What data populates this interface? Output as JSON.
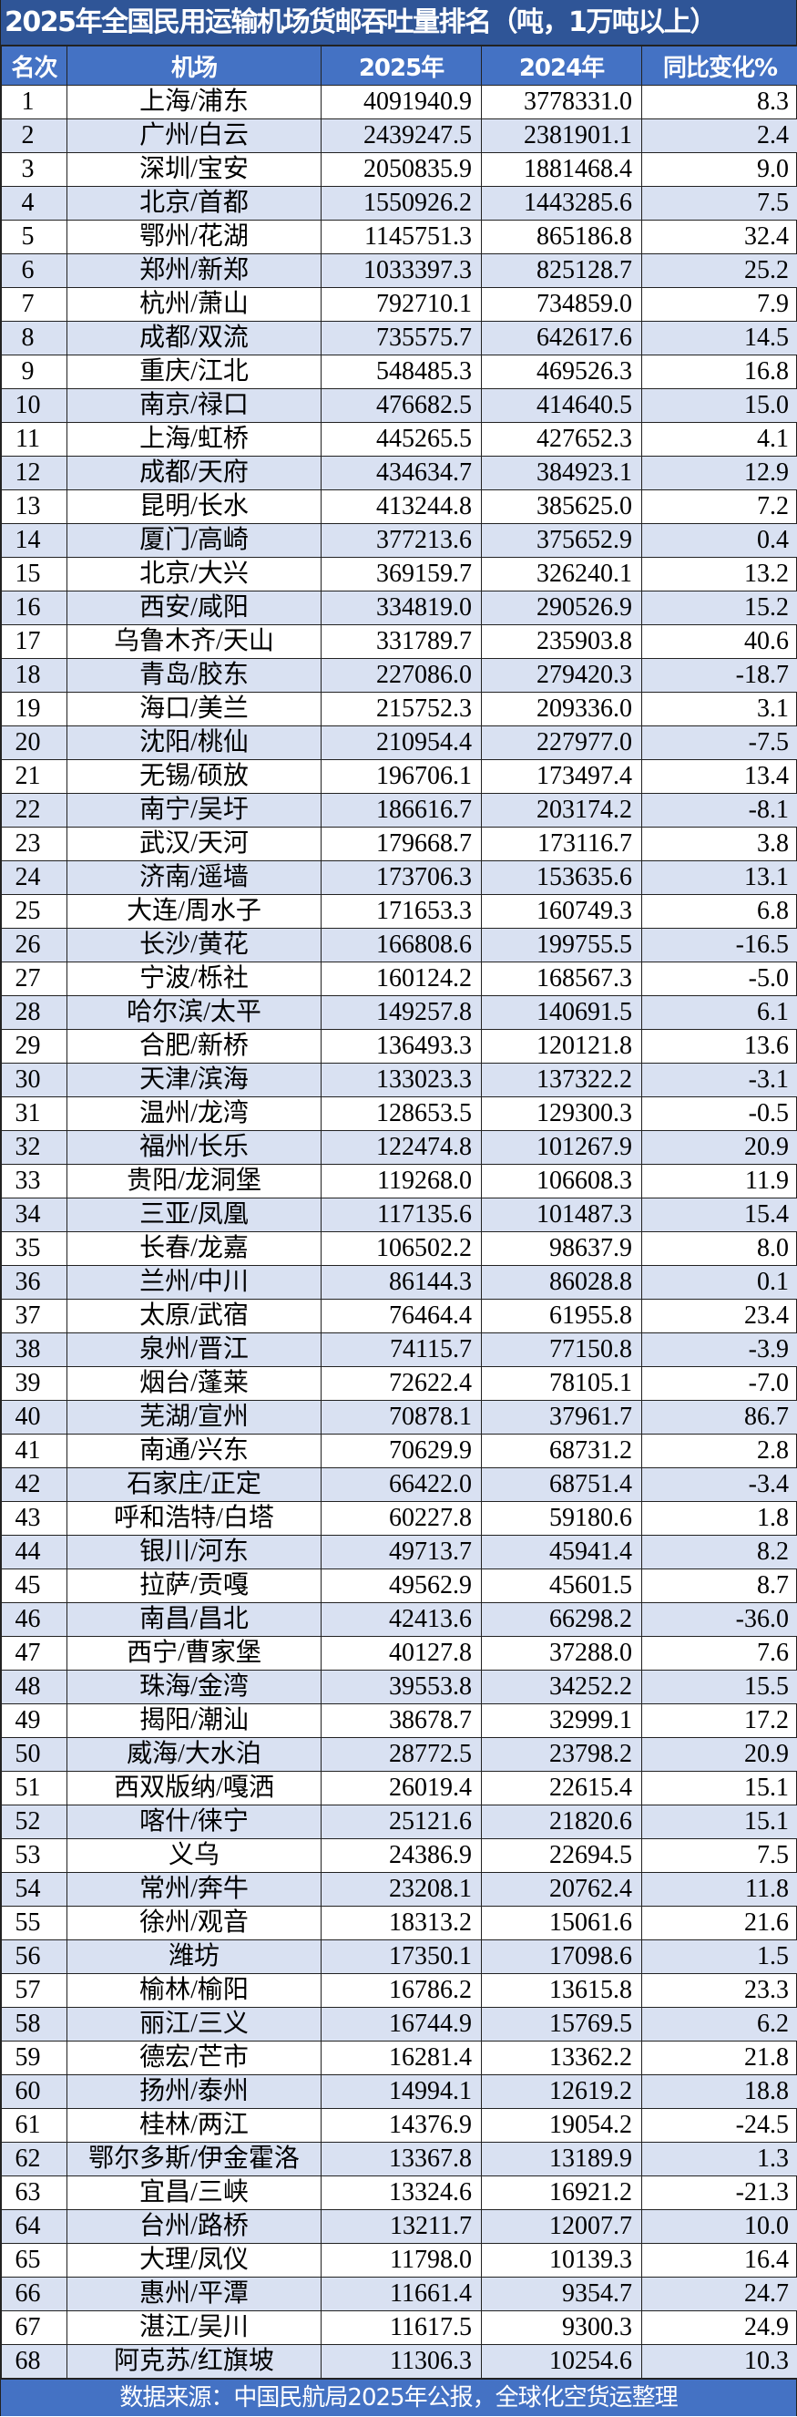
{
  "title": "2025年全国民用运输机场货邮吞吐量排名（吨，1万吨以上）",
  "headers": [
    "名次",
    "机场",
    "2025年",
    "2024年",
    "同比变化%"
  ],
  "colors": {
    "title_bg": "#2f5597",
    "header_bg": "#4472c4",
    "alt_row": "#d9e1f2"
  },
  "rows": [
    [
      "1",
      "上海/浦东",
      "4091940.9",
      "3778331.0",
      "8.3"
    ],
    [
      "2",
      "广州/白云",
      "2439247.5",
      "2381901.1",
      "2.4"
    ],
    [
      "3",
      "深圳/宝安",
      "2050835.9",
      "1881468.4",
      "9.0"
    ],
    [
      "4",
      "北京/首都",
      "1550926.2",
      "1443285.6",
      "7.5"
    ],
    [
      "5",
      "鄂州/花湖",
      "1145751.3",
      "865186.8",
      "32.4"
    ],
    [
      "6",
      "郑州/新郑",
      "1033397.3",
      "825128.7",
      "25.2"
    ],
    [
      "7",
      "杭州/萧山",
      "792710.1",
      "734859.0",
      "7.9"
    ],
    [
      "8",
      "成都/双流",
      "735575.7",
      "642617.6",
      "14.5"
    ],
    [
      "9",
      "重庆/江北",
      "548485.3",
      "469526.3",
      "16.8"
    ],
    [
      "10",
      "南京/禄口",
      "476682.5",
      "414640.5",
      "15.0"
    ],
    [
      "11",
      "上海/虹桥",
      "445265.5",
      "427652.3",
      "4.1"
    ],
    [
      "12",
      "成都/天府",
      "434634.7",
      "384923.1",
      "12.9"
    ],
    [
      "13",
      "昆明/长水",
      "413244.8",
      "385625.0",
      "7.2"
    ],
    [
      "14",
      "厦门/高崎",
      "377213.6",
      "375652.9",
      "0.4"
    ],
    [
      "15",
      "北京/大兴",
      "369159.7",
      "326240.1",
      "13.2"
    ],
    [
      "16",
      "西安/咸阳",
      "334819.0",
      "290526.9",
      "15.2"
    ],
    [
      "17",
      "乌鲁木齐/天山",
      "331789.7",
      "235903.8",
      "40.6"
    ],
    [
      "18",
      "青岛/胶东",
      "227086.0",
      "279420.3",
      "-18.7"
    ],
    [
      "19",
      "海口/美兰",
      "215752.3",
      "209336.0",
      "3.1"
    ],
    [
      "20",
      "沈阳/桃仙",
      "210954.4",
      "227977.0",
      "-7.5"
    ],
    [
      "21",
      "无锡/硕放",
      "196706.1",
      "173497.4",
      "13.4"
    ],
    [
      "22",
      "南宁/吴圩",
      "186616.7",
      "203174.2",
      "-8.1"
    ],
    [
      "23",
      "武汉/天河",
      "179668.7",
      "173116.7",
      "3.8"
    ],
    [
      "24",
      "济南/遥墙",
      "173706.3",
      "153635.6",
      "13.1"
    ],
    [
      "25",
      "大连/周水子",
      "171653.3",
      "160749.3",
      "6.8"
    ],
    [
      "26",
      "长沙/黄花",
      "166808.6",
      "199755.5",
      "-16.5"
    ],
    [
      "27",
      "宁波/栎社",
      "160124.2",
      "168567.3",
      "-5.0"
    ],
    [
      "28",
      "哈尔滨/太平",
      "149257.8",
      "140691.5",
      "6.1"
    ],
    [
      "29",
      "合肥/新桥",
      "136493.3",
      "120121.8",
      "13.6"
    ],
    [
      "30",
      "天津/滨海",
      "133023.3",
      "137322.2",
      "-3.1"
    ],
    [
      "31",
      "温州/龙湾",
      "128653.5",
      "129300.3",
      "-0.5"
    ],
    [
      "32",
      "福州/长乐",
      "122474.8",
      "101267.9",
      "20.9"
    ],
    [
      "33",
      "贵阳/龙洞堡",
      "119268.0",
      "106608.3",
      "11.9"
    ],
    [
      "34",
      "三亚/凤凰",
      "117135.6",
      "101487.3",
      "15.4"
    ],
    [
      "35",
      "长春/龙嘉",
      "106502.2",
      "98637.9",
      "8.0"
    ],
    [
      "36",
      "兰州/中川",
      "86144.3",
      "86028.8",
      "0.1"
    ],
    [
      "37",
      "太原/武宿",
      "76464.4",
      "61955.8",
      "23.4"
    ],
    [
      "38",
      "泉州/晋江",
      "74115.7",
      "77150.8",
      "-3.9"
    ],
    [
      "39",
      "烟台/蓬莱",
      "72622.4",
      "78105.1",
      "-7.0"
    ],
    [
      "40",
      "芜湖/宣州",
      "70878.1",
      "37961.7",
      "86.7"
    ],
    [
      "41",
      "南通/兴东",
      "70629.9",
      "68731.2",
      "2.8"
    ],
    [
      "42",
      "石家庄/正定",
      "66422.0",
      "68751.4",
      "-3.4"
    ],
    [
      "43",
      "呼和浩特/白塔",
      "60227.8",
      "59180.6",
      "1.8"
    ],
    [
      "44",
      "银川/河东",
      "49713.7",
      "45941.4",
      "8.2"
    ],
    [
      "45",
      "拉萨/贡嘎",
      "49562.9",
      "45601.5",
      "8.7"
    ],
    [
      "46",
      "南昌/昌北",
      "42413.6",
      "66298.2",
      "-36.0"
    ],
    [
      "47",
      "西宁/曹家堡",
      "40127.8",
      "37288.0",
      "7.6"
    ],
    [
      "48",
      "珠海/金湾",
      "39553.8",
      "34252.2",
      "15.5"
    ],
    [
      "49",
      "揭阳/潮汕",
      "38678.7",
      "32999.1",
      "17.2"
    ],
    [
      "50",
      "威海/大水泊",
      "28772.5",
      "23798.2",
      "20.9"
    ],
    [
      "51",
      "西双版纳/嘎洒",
      "26019.4",
      "22615.4",
      "15.1"
    ],
    [
      "52",
      "喀什/徕宁",
      "25121.6",
      "21820.6",
      "15.1"
    ],
    [
      "53",
      "义乌",
      "24386.9",
      "22694.5",
      "7.5"
    ],
    [
      "54",
      "常州/奔牛",
      "23208.1",
      "20762.4",
      "11.8"
    ],
    [
      "55",
      "徐州/观音",
      "18313.2",
      "15061.6",
      "21.6"
    ],
    [
      "56",
      "潍坊",
      "17350.1",
      "17098.6",
      "1.5"
    ],
    [
      "57",
      "榆林/榆阳",
      "16786.2",
      "13615.8",
      "23.3"
    ],
    [
      "58",
      "丽江/三义",
      "16744.9",
      "15769.5",
      "6.2"
    ],
    [
      "59",
      "德宏/芒市",
      "16281.4",
      "13362.2",
      "21.8"
    ],
    [
      "60",
      "扬州/泰州",
      "14994.1",
      "12619.2",
      "18.8"
    ],
    [
      "61",
      "桂林/两江",
      "14376.9",
      "19054.2",
      "-24.5"
    ],
    [
      "62",
      "鄂尔多斯/伊金霍洛",
      "13367.8",
      "13189.9",
      "1.3"
    ],
    [
      "63",
      "宜昌/三峡",
      "13324.6",
      "16921.2",
      "-21.3"
    ],
    [
      "64",
      "台州/路桥",
      "13211.7",
      "12007.7",
      "10.0"
    ],
    [
      "65",
      "大理/凤仪",
      "11798.0",
      "10139.3",
      "16.4"
    ],
    [
      "66",
      "惠州/平潭",
      "11661.4",
      "9354.7",
      "24.7"
    ],
    [
      "67",
      "湛江/吴川",
      "11617.5",
      "9300.3",
      "24.9"
    ],
    [
      "68",
      "阿克苏/红旗坡",
      "11306.3",
      "10254.6",
      "10.3"
    ]
  ],
  "footer": "数据来源：中国民航局2025年公报，全球化空货运整理"
}
